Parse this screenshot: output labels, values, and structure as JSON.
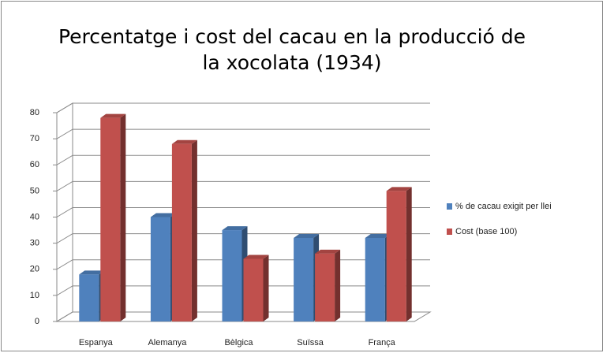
{
  "chart_data": {
    "type": "bar3d",
    "title": "Percentatge i cost del cacau en la producció de la xocolata (1934)",
    "categories": [
      "Espanya",
      "Alemanya",
      "Bèlgica",
      "Suïssa",
      "França"
    ],
    "series": [
      {
        "name": "% de cacau exigit per llei",
        "color": "#4f81bd",
        "values": [
          18,
          40,
          35,
          32,
          32
        ]
      },
      {
        "name": "Cost (base 100)",
        "color": "#c0504d",
        "values": [
          78,
          68,
          24,
          26,
          50
        ]
      }
    ],
    "ylim": [
      0,
      80
    ],
    "yticks": [
      0,
      10,
      20,
      30,
      40,
      50,
      60,
      70,
      80
    ],
    "grid": true,
    "legend": "right"
  }
}
